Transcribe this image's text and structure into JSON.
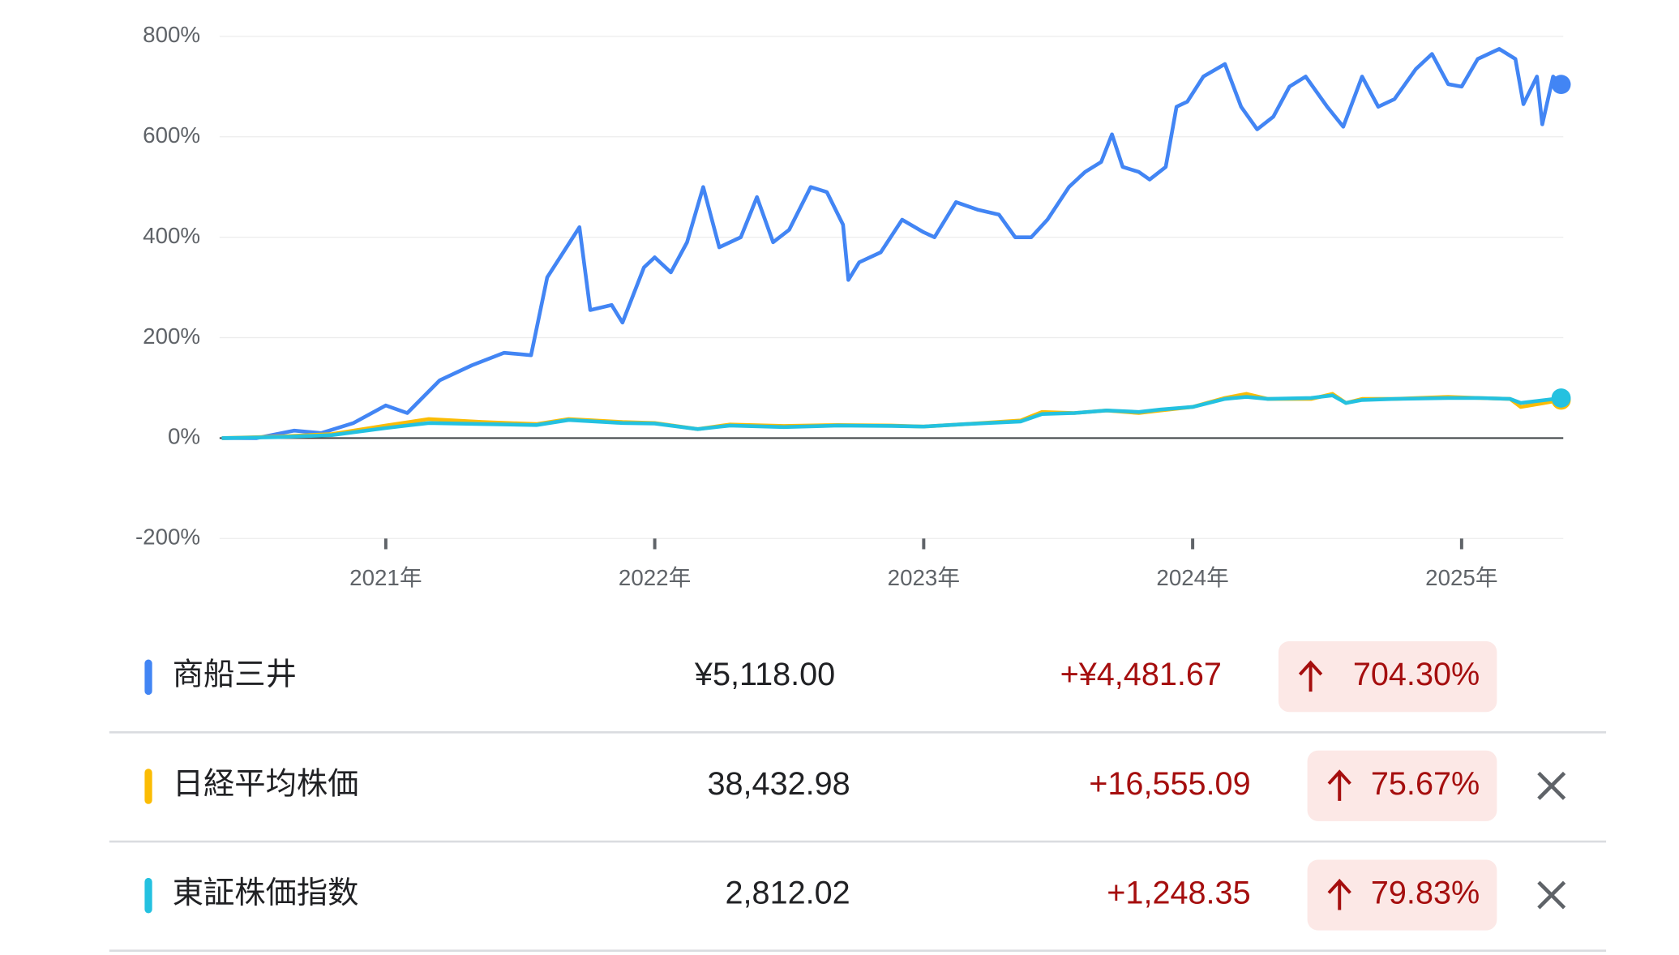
{
  "chart_data": {
    "type": "line",
    "grid": true,
    "xlim": [
      2020.39,
      2025.37
    ],
    "ylim": [
      -200,
      800
    ],
    "yticks": [
      {
        "value": 800,
        "label": "800%"
      },
      {
        "value": 600,
        "label": "600%"
      },
      {
        "value": 400,
        "label": "400%"
      },
      {
        "value": 200,
        "label": "200%"
      },
      {
        "value": 0,
        "label": "0%"
      },
      {
        "value": -200,
        "label": "-200%"
      }
    ],
    "xticks": [
      {
        "value": 2021,
        "label": "2021年"
      },
      {
        "value": 2022,
        "label": "2022年"
      },
      {
        "value": 2023,
        "label": "2023年"
      },
      {
        "value": 2024,
        "label": "2024年"
      },
      {
        "value": 2025,
        "label": "2025年"
      }
    ],
    "series": [
      {
        "name": "商船三井",
        "color": "#4285f4",
        "x": [
          2020.39,
          2020.52,
          2020.66,
          2020.76,
          2020.88,
          2021.0,
          2021.08,
          2021.2,
          2021.32,
          2021.44,
          2021.54,
          2021.6,
          2021.72,
          2021.76,
          2021.84,
          2021.88,
          2021.96,
          2022.0,
          2022.06,
          2022.12,
          2022.18,
          2022.24,
          2022.32,
          2022.38,
          2022.44,
          2022.5,
          2022.58,
          2022.64,
          2022.7,
          2022.72,
          2022.76,
          2022.84,
          2022.92,
          2023.0,
          2023.04,
          2023.12,
          2023.2,
          2023.28,
          2023.34,
          2023.4,
          2023.46,
          2023.54,
          2023.6,
          2023.66,
          2023.7,
          2023.74,
          2023.8,
          2023.84,
          2023.9,
          2023.94,
          2023.98,
          2024.04,
          2024.12,
          2024.18,
          2024.24,
          2024.3,
          2024.36,
          2024.42,
          2024.5,
          2024.56,
          2024.63,
          2024.69,
          2024.75,
          2024.83,
          2024.89,
          2024.95,
          2025.0,
          2025.06,
          2025.14,
          2025.2,
          2025.23,
          2025.28,
          2025.3,
          2025.34,
          2025.37
        ],
        "values": [
          0,
          0,
          15,
          10,
          30,
          65,
          50,
          115,
          145,
          170,
          165,
          320,
          420,
          255,
          265,
          230,
          340,
          360,
          330,
          390,
          500,
          380,
          400,
          480,
          390,
          415,
          500,
          490,
          425,
          315,
          350,
          370,
          435,
          410,
          400,
          470,
          455,
          445,
          400,
          400,
          435,
          500,
          530,
          550,
          605,
          540,
          530,
          515,
          540,
          660,
          670,
          720,
          745,
          660,
          615,
          640,
          700,
          720,
          660,
          620,
          720,
          660,
          675,
          735,
          765,
          705,
          700,
          755,
          775,
          755,
          665,
          720,
          625,
          720,
          704.3
        ]
      },
      {
        "name": "日経平均株価",
        "color": "#fbbc04",
        "x": [
          2020.39,
          2020.6,
          2020.8,
          2021.0,
          2021.16,
          2021.36,
          2021.56,
          2021.68,
          2021.88,
          2022.0,
          2022.16,
          2022.28,
          2022.48,
          2022.68,
          2022.88,
          2023.0,
          2023.16,
          2023.36,
          2023.44,
          2023.56,
          2023.68,
          2023.8,
          2023.88,
          2024.0,
          2024.12,
          2024.2,
          2024.28,
          2024.44,
          2024.52,
          2024.57,
          2024.63,
          2024.75,
          2024.95,
          2025.06,
          2025.18,
          2025.22,
          2025.37
        ],
        "values": [
          0,
          3,
          8,
          25,
          38,
          32,
          28,
          38,
          32,
          30,
          18,
          27,
          24,
          26,
          25,
          23,
          28,
          35,
          52,
          50,
          55,
          50,
          55,
          62,
          80,
          88,
          78,
          78,
          88,
          70,
          78,
          78,
          82,
          80,
          78,
          62,
          75.67
        ]
      },
      {
        "name": "東証株価指数",
        "color": "#24c1e0",
        "x": [
          2020.39,
          2020.6,
          2020.8,
          2021.0,
          2021.16,
          2021.36,
          2021.56,
          2021.68,
          2021.88,
          2022.0,
          2022.16,
          2022.28,
          2022.48,
          2022.68,
          2022.88,
          2023.0,
          2023.16,
          2023.36,
          2023.44,
          2023.56,
          2023.68,
          2023.8,
          2023.88,
          2024.0,
          2024.12,
          2024.2,
          2024.28,
          2024.44,
          2024.52,
          2024.57,
          2024.63,
          2024.75,
          2024.95,
          2025.06,
          2025.18,
          2025.22,
          2025.37
        ],
        "values": [
          0,
          2,
          6,
          20,
          30,
          28,
          26,
          36,
          30,
          29,
          18,
          25,
          22,
          25,
          24,
          23,
          28,
          33,
          48,
          50,
          55,
          52,
          57,
          62,
          78,
          82,
          78,
          80,
          85,
          70,
          76,
          78,
          80,
          80,
          78,
          70,
          79.83
        ]
      }
    ]
  },
  "table": {
    "rows": [
      {
        "price": "¥5,118.00",
        "change": "+¥4,481.67",
        "percent": "704.30%"
      },
      {
        "price": "38,432.98",
        "change": "+16,555.09",
        "percent": "75.67%"
      },
      {
        "price": "2,812.02",
        "change": "+1,248.35",
        "percent": "79.83%"
      }
    ]
  }
}
